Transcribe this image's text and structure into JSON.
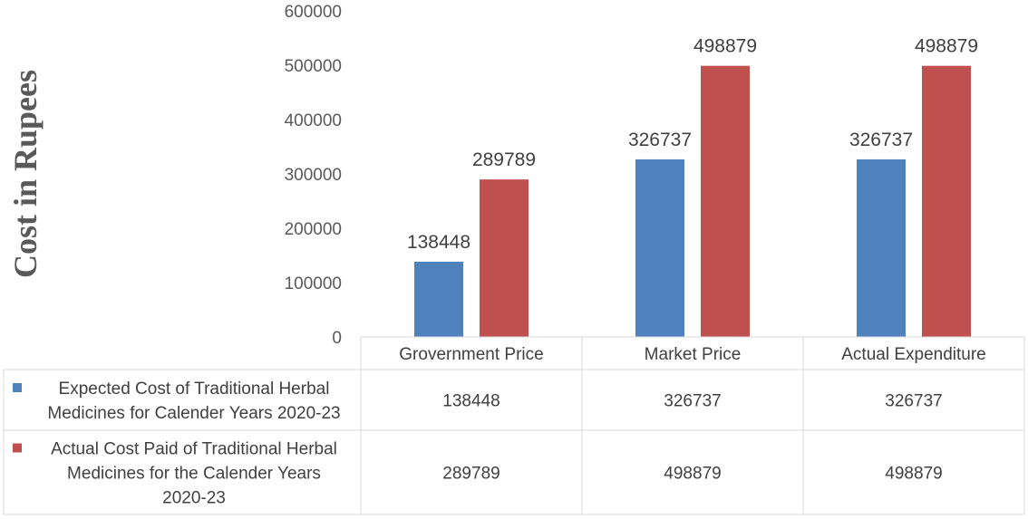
{
  "chart_data": {
    "type": "bar",
    "categories": [
      "Grovernment Price",
      "Market Price",
      "Actual Expenditure"
    ],
    "series": [
      {
        "name_lines": [
          "Expected Cost of Traditional Herbal",
          "Medicines for Calender Years 2020-23"
        ],
        "color": "#4f81bd",
        "values": [
          138448,
          326737,
          326737
        ]
      },
      {
        "name_lines": [
          "Actual Cost Paid of Traditional Herbal",
          "Medicines for the Calender Years",
          "2020-23"
        ],
        "color": "#c0504d",
        "values": [
          289789,
          498879,
          498879
        ]
      }
    ],
    "ylabel": "Cost in Rupees",
    "ylim": [
      0,
      600000
    ],
    "yticks": [
      0,
      100000,
      200000,
      300000,
      400000,
      500000,
      600000
    ],
    "data_table": true,
    "grid": false
  }
}
